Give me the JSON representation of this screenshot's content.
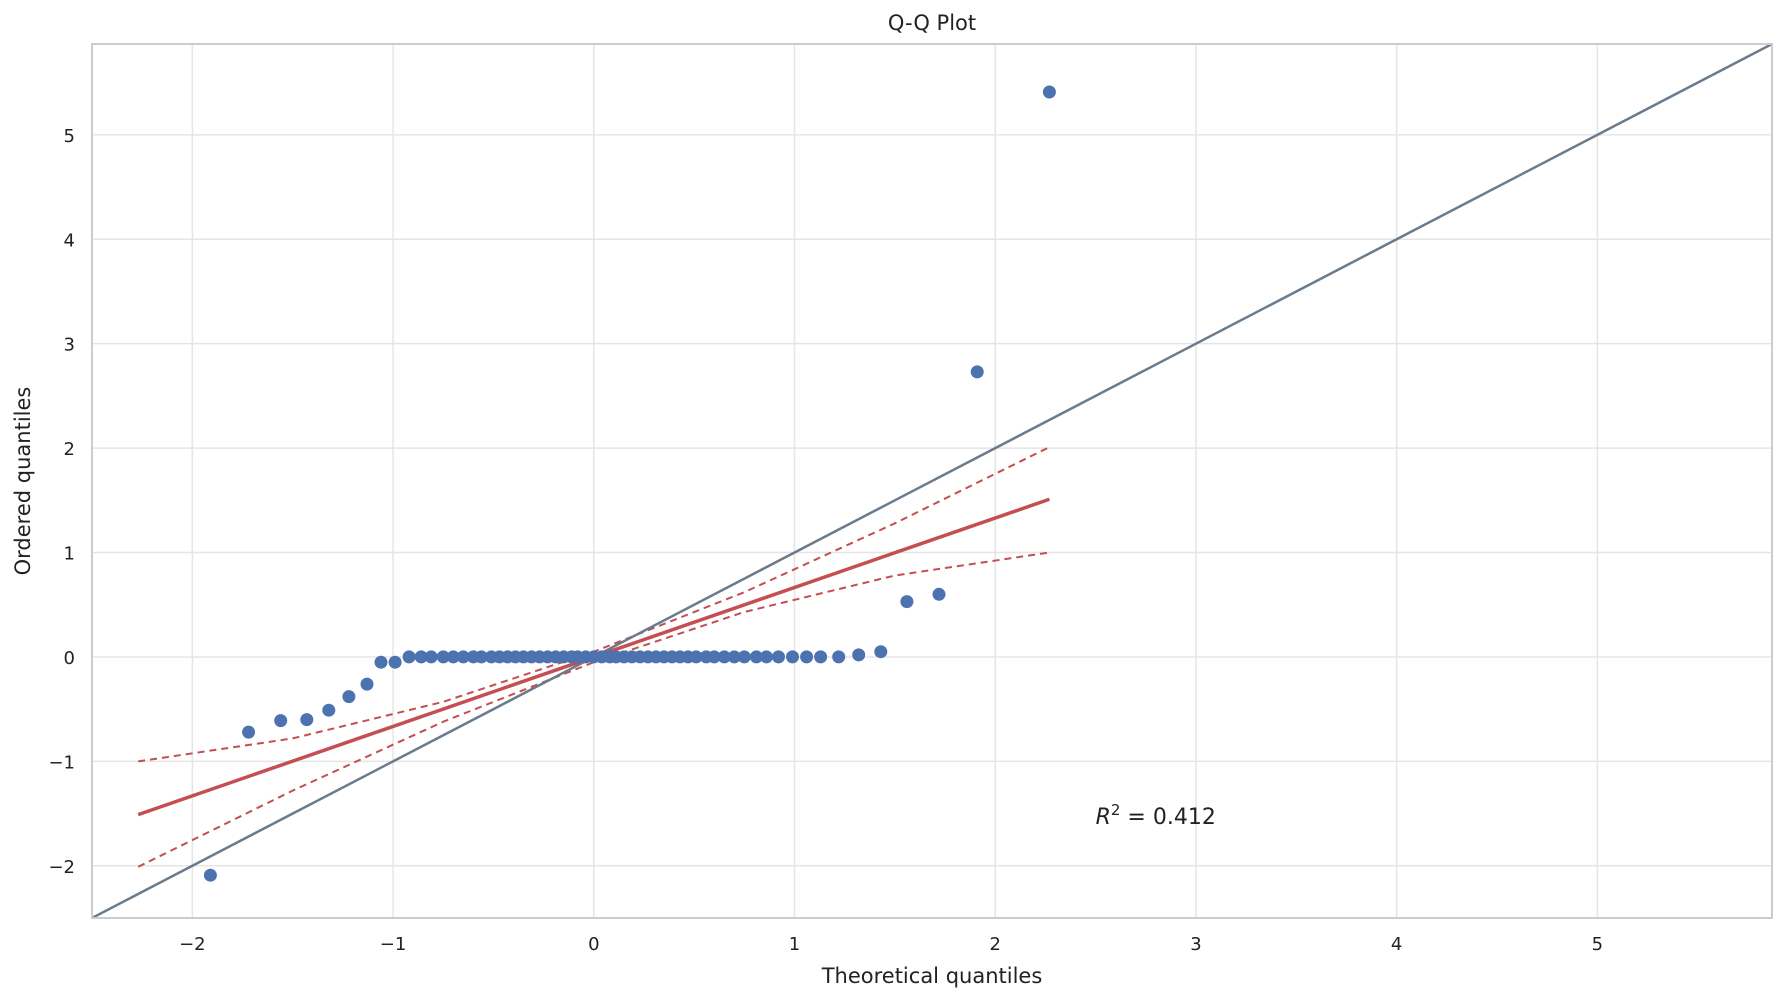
{
  "chart_data": {
    "type": "scatter",
    "title": "Q-Q Plot",
    "xlabel": "Theoretical quantiles",
    "ylabel": "Ordered quantiles",
    "xlim": [
      -2.5,
      5.87
    ],
    "ylim": [
      -2.5,
      5.87
    ],
    "xticks": [
      -2,
      -1,
      0,
      1,
      2,
      3,
      4,
      5
    ],
    "yticks": [
      -2,
      -1,
      0,
      1,
      2,
      3,
      4,
      5
    ],
    "grid": true,
    "colors": {
      "points": "#4c72b0",
      "fit_line": "#c44e52",
      "confidence_band": "#c44e52",
      "reference_line": "#6a7b8c",
      "grid": "#e5e5e5",
      "frame": "#cccccc"
    },
    "points": {
      "x": [
        -1.91,
        -1.72,
        -1.56,
        -1.43,
        -1.32,
        -1.22,
        -1.13,
        -1.06,
        -0.99,
        -0.92,
        -0.86,
        -0.81,
        -0.75,
        -0.7,
        -0.65,
        -0.6,
        -0.56,
        -0.51,
        -0.47,
        -0.43,
        -0.39,
        -0.35,
        -0.31,
        -0.27,
        -0.23,
        -0.19,
        -0.15,
        -0.11,
        -0.08,
        -0.04,
        0.0,
        0.04,
        0.08,
        0.11,
        0.15,
        0.19,
        0.23,
        0.27,
        0.31,
        0.35,
        0.39,
        0.43,
        0.47,
        0.51,
        0.56,
        0.6,
        0.65,
        0.7,
        0.75,
        0.81,
        0.86,
        0.92,
        0.99,
        1.06,
        1.13,
        1.22,
        1.32,
        1.43,
        1.56,
        1.72,
        1.91,
        2.27
      ],
      "y": [
        -2.09,
        -0.72,
        -0.61,
        -0.6,
        -0.51,
        -0.38,
        -0.26,
        -0.05,
        -0.05,
        0.0,
        0.0,
        0.0,
        0.0,
        0.0,
        0.0,
        0.0,
        0.0,
        0.0,
        0.0,
        0.0,
        0.0,
        0.0,
        0.0,
        0.0,
        0.0,
        0.0,
        0.0,
        0.0,
        0.0,
        0.0,
        0.0,
        0.0,
        0.0,
        0.0,
        0.0,
        0.0,
        0.0,
        0.0,
        0.0,
        0.0,
        0.0,
        0.0,
        0.0,
        0.0,
        0.0,
        0.0,
        0.0,
        0.0,
        0.0,
        0.0,
        0.0,
        0.0,
        0.0,
        0.0,
        0.0,
        0.0,
        0.02,
        0.05,
        0.53,
        0.6,
        2.73,
        5.41
      ]
    },
    "fit_line": {
      "x": [
        -2.27,
        2.27
      ],
      "y": [
        -1.51,
        1.51
      ]
    },
    "confidence_band": {
      "x": [
        -2.27,
        -1.5,
        -0.75,
        0.0,
        0.75,
        1.5,
        2.27
      ],
      "upper": [
        -1.0,
        -0.78,
        -0.43,
        0.05,
        0.62,
        1.28,
        2.01
      ],
      "lower": [
        -2.01,
        -1.28,
        -0.62,
        -0.05,
        0.43,
        0.78,
        1.0
      ]
    },
    "reference_line": {
      "x": [
        -2.5,
        5.87
      ],
      "y": [
        -2.5,
        5.87
      ]
    },
    "annotation": {
      "label": "R",
      "superscript": "2",
      "text": " = 0.412",
      "x": 2.5,
      "y": -1.6
    }
  }
}
